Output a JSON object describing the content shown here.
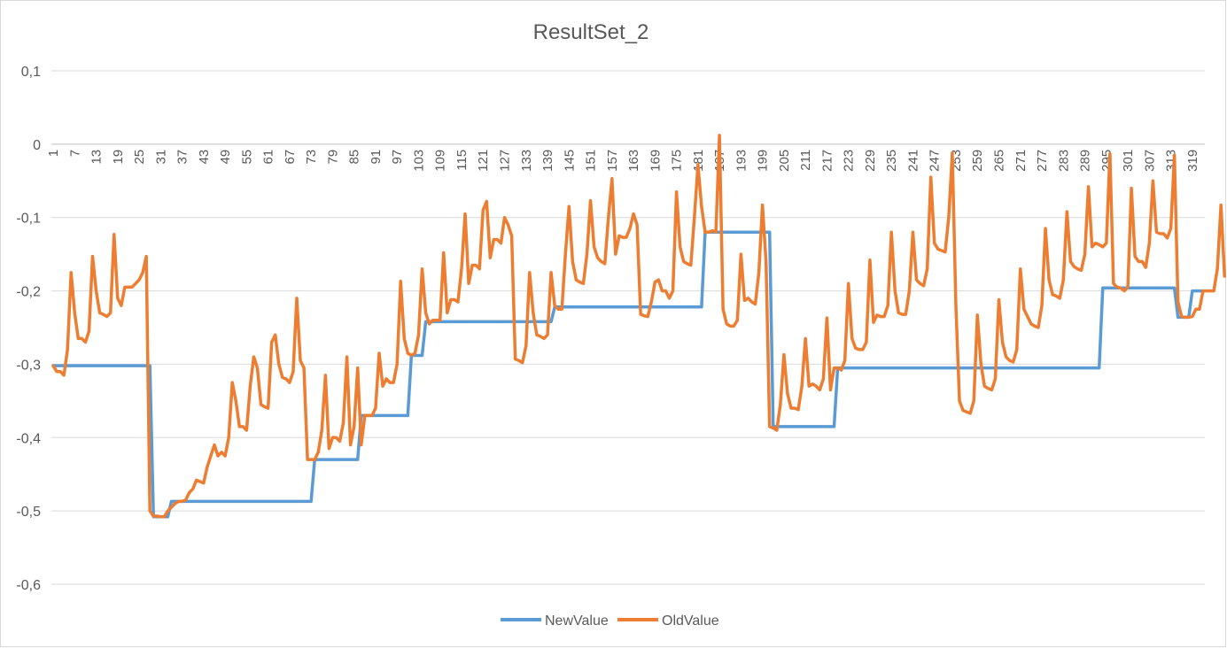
{
  "chart_data": {
    "type": "line",
    "title": "ResultSet_2",
    "xlabel": "",
    "ylabel": "",
    "ylim": [
      -0.6,
      0.1
    ],
    "yticks": [
      0.1,
      0,
      -0.1,
      -0.2,
      -0.3,
      -0.4,
      -0.5,
      -0.6
    ],
    "ytick_labels": [
      "0,1",
      "0",
      "-0,1",
      "-0,2",
      "-0,3",
      "-0,4",
      "-0,5",
      "-0,6"
    ],
    "grid": true,
    "legend_position": "bottom",
    "x_count": 322,
    "x_tick_start": 1,
    "x_tick_step": 6,
    "series": [
      {
        "name": "NewValue",
        "color": "#5b9bd5",
        "segments": [
          [
            1,
            28,
            -0.302
          ],
          [
            29,
            33,
            -0.508
          ],
          [
            34,
            73,
            -0.487
          ],
          [
            74,
            86,
            -0.43
          ],
          [
            87,
            100,
            -0.37
          ],
          [
            101,
            104,
            -0.288
          ],
          [
            105,
            140,
            -0.242
          ],
          [
            141,
            182,
            -0.222
          ],
          [
            183,
            201,
            -0.12
          ],
          [
            202,
            219,
            -0.385
          ],
          [
            220,
            293,
            -0.305
          ],
          [
            294,
            314,
            -0.196
          ],
          [
            315,
            318,
            -0.236
          ],
          [
            319,
            322,
            -0.2
          ]
        ]
      },
      {
        "name": "OldValue",
        "color": "#ed7d31",
        "values": [
          -0.302,
          -0.31,
          -0.31,
          -0.315,
          -0.28,
          -0.175,
          -0.23,
          -0.265,
          -0.265,
          -0.27,
          -0.255,
          -0.153,
          -0.2,
          -0.23,
          -0.232,
          -0.235,
          -0.23,
          -0.123,
          -0.21,
          -0.22,
          -0.195,
          -0.195,
          -0.195,
          -0.19,
          -0.185,
          -0.175,
          -0.153,
          -0.5,
          -0.507,
          -0.507,
          -0.508,
          -0.508,
          -0.5,
          -0.495,
          -0.49,
          -0.487,
          -0.487,
          -0.485,
          -0.475,
          -0.47,
          -0.458,
          -0.46,
          -0.462,
          -0.44,
          -0.425,
          -0.41,
          -0.425,
          -0.42,
          -0.425,
          -0.4,
          -0.325,
          -0.35,
          -0.385,
          -0.385,
          -0.39,
          -0.33,
          -0.29,
          -0.305,
          -0.355,
          -0.358,
          -0.36,
          -0.27,
          -0.26,
          -0.3,
          -0.318,
          -0.32,
          -0.325,
          -0.31,
          -0.21,
          -0.295,
          -0.305,
          -0.43,
          -0.43,
          -0.43,
          -0.42,
          -0.39,
          -0.315,
          -0.415,
          -0.4,
          -0.4,
          -0.405,
          -0.38,
          -0.29,
          -0.41,
          -0.385,
          -0.305,
          -0.41,
          -0.37,
          -0.37,
          -0.37,
          -0.36,
          -0.285,
          -0.33,
          -0.32,
          -0.325,
          -0.325,
          -0.3,
          -0.187,
          -0.265,
          -0.285,
          -0.288,
          -0.285,
          -0.26,
          -0.17,
          -0.23,
          -0.245,
          -0.24,
          -0.24,
          -0.24,
          -0.148,
          -0.23,
          -0.212,
          -0.212,
          -0.215,
          -0.17,
          -0.095,
          -0.19,
          -0.165,
          -0.165,
          -0.17,
          -0.09,
          -0.078,
          -0.155,
          -0.13,
          -0.13,
          -0.135,
          -0.1,
          -0.11,
          -0.125,
          -0.293,
          -0.295,
          -0.298,
          -0.275,
          -0.175,
          -0.23,
          -0.26,
          -0.262,
          -0.265,
          -0.26,
          -0.175,
          -0.22,
          -0.225,
          -0.225,
          -0.15,
          -0.085,
          -0.16,
          -0.185,
          -0.188,
          -0.19,
          -0.15,
          -0.077,
          -0.14,
          -0.155,
          -0.16,
          -0.163,
          -0.1,
          -0.047,
          -0.15,
          -0.125,
          -0.127,
          -0.127,
          -0.115,
          -0.095,
          -0.11,
          -0.232,
          -0.234,
          -0.235,
          -0.215,
          -0.188,
          -0.185,
          -0.2,
          -0.2,
          -0.21,
          -0.2,
          -0.065,
          -0.14,
          -0.16,
          -0.163,
          -0.165,
          -0.1,
          -0.028,
          -0.085,
          -0.12,
          -0.12,
          -0.118,
          -0.12,
          0.012,
          -0.225,
          -0.245,
          -0.248,
          -0.248,
          -0.24,
          -0.15,
          -0.213,
          -0.21,
          -0.215,
          -0.218,
          -0.175,
          -0.083,
          -0.16,
          -0.385,
          -0.387,
          -0.39,
          -0.355,
          -0.287,
          -0.34,
          -0.36,
          -0.36,
          -0.362,
          -0.33,
          -0.265,
          -0.33,
          -0.327,
          -0.33,
          -0.335,
          -0.32,
          -0.237,
          -0.335,
          -0.305,
          -0.305,
          -0.308,
          -0.295,
          -0.19,
          -0.265,
          -0.278,
          -0.28,
          -0.28,
          -0.27,
          -0.158,
          -0.243,
          -0.233,
          -0.235,
          -0.235,
          -0.22,
          -0.12,
          -0.2,
          -0.23,
          -0.232,
          -0.232,
          -0.2,
          -0.12,
          -0.185,
          -0.19,
          -0.193,
          -0.17,
          -0.045,
          -0.135,
          -0.143,
          -0.145,
          -0.147,
          -0.1,
          -0.012,
          -0.22,
          -0.35,
          -0.363,
          -0.365,
          -0.367,
          -0.35,
          -0.233,
          -0.3,
          -0.33,
          -0.333,
          -0.335,
          -0.32,
          -0.212,
          -0.27,
          -0.29,
          -0.295,
          -0.297,
          -0.28,
          -0.17,
          -0.225,
          -0.235,
          -0.245,
          -0.248,
          -0.25,
          -0.22,
          -0.115,
          -0.185,
          -0.205,
          -0.207,
          -0.21,
          -0.185,
          -0.092,
          -0.16,
          -0.167,
          -0.17,
          -0.172,
          -0.15,
          -0.058,
          -0.14,
          -0.135,
          -0.137,
          -0.14,
          -0.135,
          -0.013,
          -0.19,
          -0.195,
          -0.196,
          -0.2,
          -0.195,
          -0.06,
          -0.153,
          -0.16,
          -0.16,
          -0.168,
          -0.135,
          -0.05,
          -0.12,
          -0.122,
          -0.122,
          -0.128,
          -0.115,
          -0.015,
          -0.215,
          -0.235,
          -0.236,
          -0.236,
          -0.235,
          -0.225,
          -0.225,
          -0.2,
          -0.2,
          -0.2,
          -0.2,
          -0.17,
          -0.083,
          -0.18
        ]
      }
    ]
  }
}
